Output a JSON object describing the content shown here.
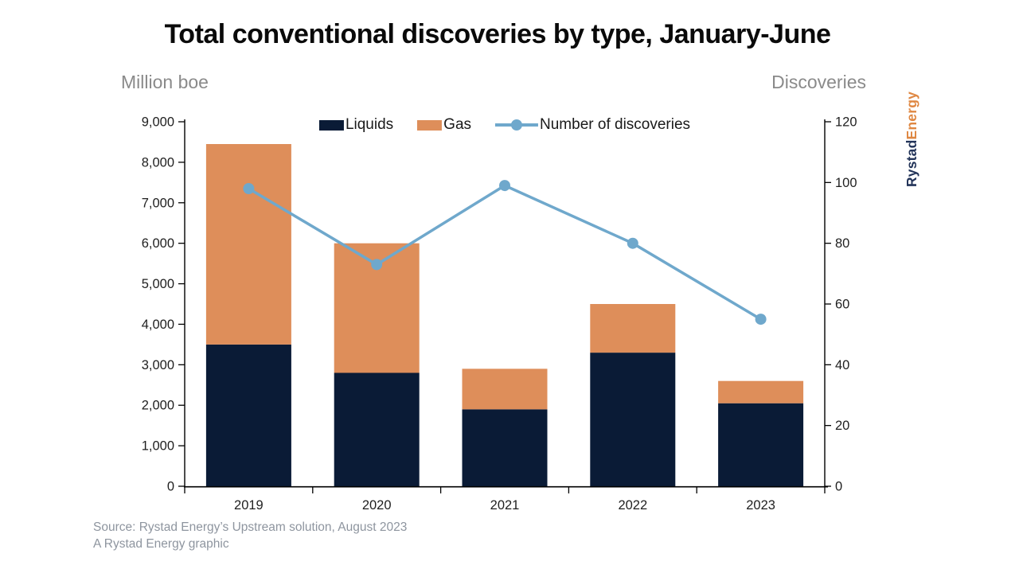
{
  "header": {
    "title": "Total conventional discoveries by type, January-June"
  },
  "axis_headers": {
    "left": "Million boe",
    "right": "Discoveries"
  },
  "legend": {
    "liquids": "Liquids",
    "gas": "Gas",
    "discoveries": "Number of discoveries"
  },
  "footer": {
    "line1": "Source: Rystad Energy’s Upstream solution, August 2023",
    "line2": "A Rystad Energy graphic"
  },
  "logo": {
    "first": "Rystad",
    "second": "Energy"
  },
  "colors": {
    "liquids": "#0A1B36",
    "gas": "#DE8E5A",
    "line": "#6FA8CC",
    "axis_header": "#8A8A8A",
    "tick_text": "#1F1F1F",
    "axis_line": "#000000",
    "source_text": "#8E959F",
    "logo_first": "#233459",
    "logo_second": "#DF8742"
  },
  "chart_data": {
    "type": "bar",
    "subtype": "stacked-bars-with-line-overlay",
    "title": "Total conventional discoveries by type, January-June",
    "categories": [
      "2019",
      "2020",
      "2021",
      "2022",
      "2023"
    ],
    "series": [
      {
        "name": "Liquids",
        "type": "bar",
        "stack": "total",
        "yaxis": "left",
        "values": [
          3500,
          2800,
          1900,
          3300,
          2050
        ]
      },
      {
        "name": "Gas",
        "type": "bar",
        "stack": "total",
        "yaxis": "left",
        "values": [
          4950,
          3200,
          1000,
          1200,
          550
        ]
      },
      {
        "name": "Number of discoveries",
        "type": "line",
        "yaxis": "right",
        "values": [
          98,
          73,
          99,
          80,
          55
        ]
      }
    ],
    "stacked_totals": [
      8450,
      6000,
      2900,
      4500,
      2600
    ],
    "left_axis": {
      "label": "Million boe",
      "min": 0,
      "max": 9000,
      "tick_step": 1000,
      "tick_labels": [
        "0",
        "1,000",
        "2,000",
        "3,000",
        "4,000",
        "5,000",
        "6,000",
        "7,000",
        "8,000",
        "9,000"
      ]
    },
    "right_axis": {
      "label": "Discoveries",
      "min": 0,
      "max": 120,
      "tick_step": 20,
      "tick_labels": [
        "0",
        "20",
        "40",
        "60",
        "80",
        "100",
        "120"
      ]
    },
    "grid": false,
    "legend_position": "top-center"
  }
}
